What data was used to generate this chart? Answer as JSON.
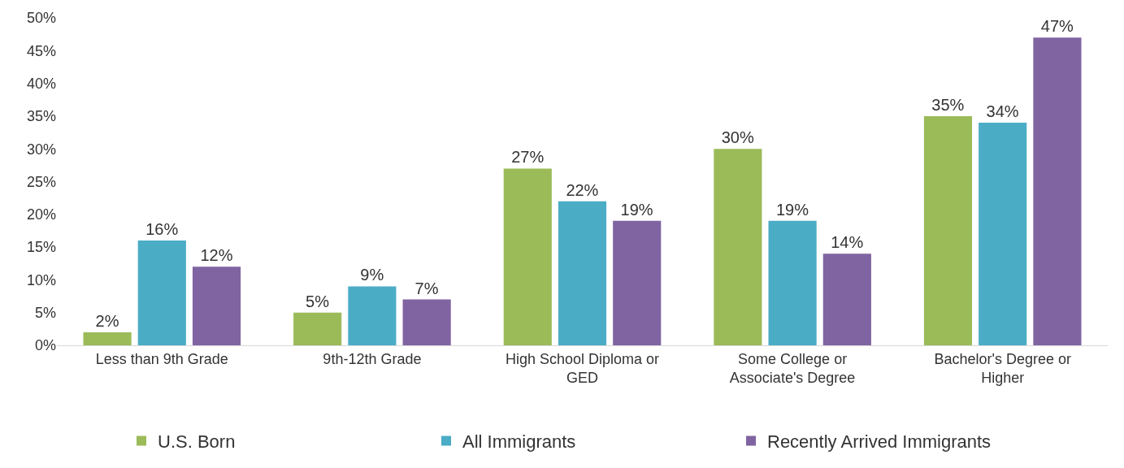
{
  "chart_data": {
    "type": "bar",
    "categories": [
      "Less than 9th Grade",
      "9th-12th Grade",
      "High School Diploma or GED",
      "Some College or Associate's Degree",
      "Bachelor's Degree or Higher"
    ],
    "series": [
      {
        "name": "U.S. Born",
        "color": "#9bbb59",
        "values": [
          2,
          5,
          27,
          30,
          35
        ],
        "value_labels": [
          "2%",
          "5%",
          "27%",
          "30%",
          "35%"
        ]
      },
      {
        "name": "All Immigrants",
        "color": "#4bacc6",
        "values": [
          16,
          9,
          22,
          19,
          34
        ],
        "value_labels": [
          "16%",
          "9%",
          "22%",
          "19%",
          "34%"
        ]
      },
      {
        "name": "Recently Arrived Immigrants",
        "color": "#8064a2",
        "values": [
          12,
          7,
          19,
          14,
          47
        ],
        "value_labels": [
          "12%",
          "7%",
          "19%",
          "14%",
          "47%"
        ]
      }
    ],
    "ylim": [
      0,
      50
    ],
    "yticks": [
      {
        "value": 0,
        "label": "0%"
      },
      {
        "value": 5,
        "label": "5%"
      },
      {
        "value": 10,
        "label": "10%"
      },
      {
        "value": 15,
        "label": "15%"
      },
      {
        "value": 20,
        "label": "20%"
      },
      {
        "value": 25,
        "label": "25%"
      },
      {
        "value": 30,
        "label": "30%"
      },
      {
        "value": 35,
        "label": "35%"
      },
      {
        "value": 40,
        "label": "40%"
      },
      {
        "value": 45,
        "label": "45%"
      },
      {
        "value": 50,
        "label": "50%"
      }
    ],
    "legend": "bottom"
  }
}
